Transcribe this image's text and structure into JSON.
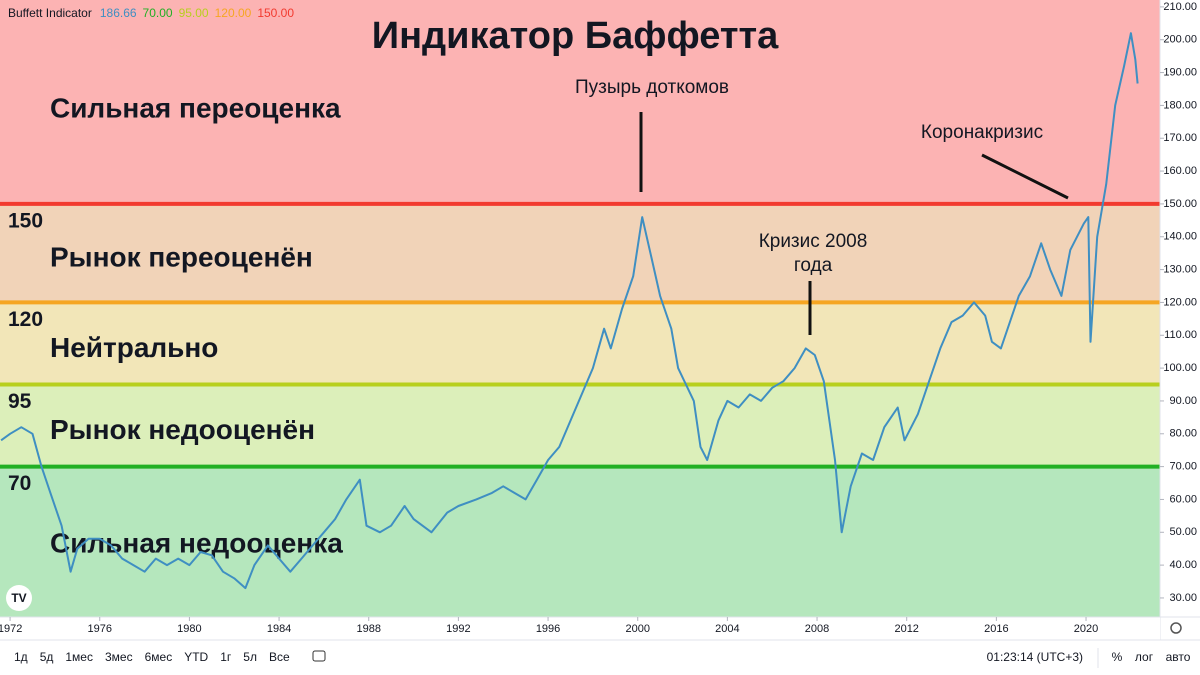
{
  "chart_data": {
    "type": "line",
    "title": "Индикатор Баффетта",
    "legend_name": "Buffett Indicator",
    "xlim": [
      1971.55,
      2023.3
    ],
    "xticks": [
      1972,
      1976,
      1980,
      1984,
      1988,
      1992,
      1996,
      2000,
      2004,
      2008,
      2012,
      2016,
      2020
    ],
    "ylim": [
      24.2,
      212.1
    ],
    "yticks": [
      {
        "value": 30,
        "label": "30.00"
      },
      {
        "value": 40,
        "label": "40.00"
      },
      {
        "value": 50,
        "label": "50.00"
      },
      {
        "value": 60,
        "label": "60.00"
      },
      {
        "value": 70,
        "label": "70.00"
      },
      {
        "value": 80,
        "label": "80.00"
      },
      {
        "value": 90,
        "label": "90.00"
      },
      {
        "value": 100,
        "label": "100.00"
      },
      {
        "value": 110,
        "label": "110.00"
      },
      {
        "value": 120,
        "label": "120.00"
      },
      {
        "value": 130,
        "label": "130.00"
      },
      {
        "value": 140,
        "label": "140.00"
      },
      {
        "value": 150,
        "label": "150.00"
      },
      {
        "value": 160,
        "label": "160.00"
      },
      {
        "value": 170,
        "label": "170.00"
      },
      {
        "value": 180,
        "label": "180.00"
      },
      {
        "value": 190,
        "label": "190.00"
      },
      {
        "value": 200,
        "label": "200.00"
      },
      {
        "value": 210,
        "label": "210.00"
      }
    ],
    "grid": false,
    "series": [
      {
        "name": "Buffett Indicator",
        "color": "#3f8fc2",
        "x": [
          1971.6,
          1972.0,
          1972.5,
          1973.0,
          1973.4,
          1973.8,
          1974.3,
          1974.7,
          1975.0,
          1975.5,
          1976.0,
          1976.5,
          1977.0,
          1977.5,
          1978.0,
          1978.5,
          1979.0,
          1979.5,
          1980.0,
          1980.5,
          1981.0,
          1981.5,
          1982.0,
          1982.5,
          1982.9,
          1983.5,
          1984.0,
          1984.5,
          1985.0,
          1985.5,
          1986.0,
          1986.5,
          1987.0,
          1987.6,
          1987.9,
          1988.5,
          1989.0,
          1989.6,
          1990.0,
          1990.8,
          1991.5,
          1992.0,
          1992.8,
          1993.5,
          1994.0,
          1994.5,
          1995.0,
          1995.5,
          1996.0,
          1996.5,
          1997.0,
          1997.5,
          1998.0,
          1998.5,
          1998.8,
          1999.3,
          1999.8,
          2000.2,
          2000.6,
          2001.0,
          2001.5,
          2001.8,
          2002.5,
          2002.8,
          2003.1,
          2003.6,
          2004.0,
          2004.5,
          2005.0,
          2005.5,
          2006.0,
          2006.5,
          2007.0,
          2007.5,
          2007.9,
          2008.3,
          2008.8,
          2009.1,
          2009.5,
          2010.0,
          2010.5,
          2011.0,
          2011.6,
          2011.9,
          2012.5,
          2013.0,
          2013.5,
          2014.0,
          2014.5,
          2015.0,
          2015.5,
          2015.8,
          2016.2,
          2016.7,
          2017.0,
          2017.5,
          2018.0,
          2018.4,
          2018.9,
          2019.3,
          2019.9,
          2020.1,
          2020.2,
          2020.5,
          2020.9,
          2021.3,
          2021.7,
          2022.0,
          2022.2,
          2022.3
        ],
        "values": [
          78,
          80,
          82,
          80,
          70,
          62,
          52,
          38,
          45,
          48,
          48,
          46,
          42,
          40,
          38,
          42,
          40,
          42,
          40,
          44,
          43,
          38,
          36,
          33,
          40,
          46,
          42,
          38,
          42,
          46,
          50,
          54,
          60,
          66,
          52,
          50,
          52,
          58,
          54,
          50,
          56,
          58,
          60,
          62,
          64,
          62,
          60,
          66,
          72,
          76,
          84,
          92,
          100,
          112,
          106,
          118,
          128,
          146,
          134,
          122,
          112,
          100,
          90,
          76,
          72,
          84,
          90,
          88,
          92,
          90,
          94,
          96,
          100,
          106,
          104,
          96,
          72,
          50,
          64,
          74,
          72,
          82,
          88,
          78,
          86,
          96,
          106,
          114,
          116,
          120,
          116,
          108,
          106,
          116,
          122,
          128,
          138,
          130,
          122,
          136,
          144,
          146,
          108,
          140,
          156,
          180,
          192,
          202,
          194,
          186.66
        ]
      }
    ],
    "levels": [
      {
        "value": 150,
        "label": "150",
        "legend_label": "150.00",
        "color": "#f23a2f"
      },
      {
        "value": 120,
        "label": "120",
        "legend_label": "120.00",
        "color": "#f5a623"
      },
      {
        "value": 95,
        "label": "95",
        "legend_label": "95.00",
        "color": "#b8cf1e"
      },
      {
        "value": 70,
        "label": "70",
        "legend_label": "70.00",
        "color": "#22b024"
      }
    ],
    "zones": [
      {
        "label": "Сильная переоценка",
        "color": "#fcb3b3"
      },
      {
        "label": "Рынок переоценён",
        "color": "#f1d3b8"
      },
      {
        "label": "Нейтрально",
        "color": "#f2e6b8"
      },
      {
        "label": "Рынок недооценён",
        "color": "#dcefba"
      },
      {
        "label": "Сильная недооценка",
        "color": "#b5e7bd"
      }
    ],
    "annotations": [
      "Пузырь доткомов",
      "Кризис 2008",
      "года",
      "Коронакризис"
    ]
  },
  "toolbar": {
    "ranges": [
      "1д",
      "5д",
      "1мес",
      "3мес",
      "6мес",
      "YTD",
      "1г",
      "5л",
      "Все"
    ],
    "time": "01:23:14 (UTC+3)",
    "options": [
      "%",
      "лог",
      "авто"
    ]
  }
}
